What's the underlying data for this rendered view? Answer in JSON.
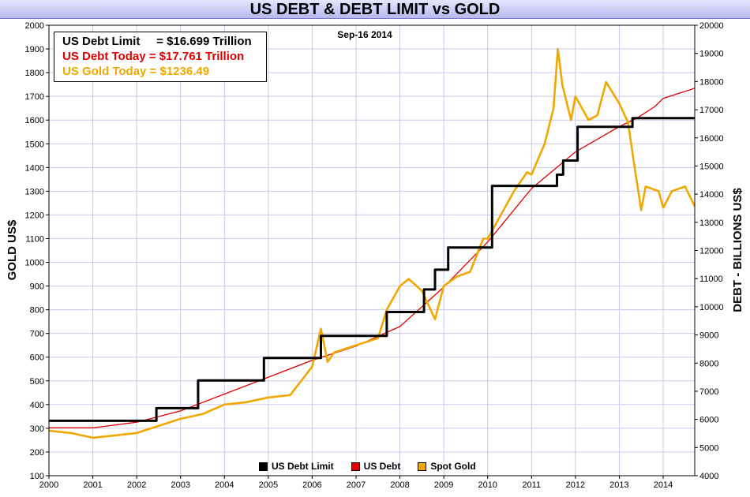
{
  "title": "US DEBT & DEBT LIMIT vs GOLD",
  "date_label": "Sep-16  2014",
  "info": {
    "lines": [
      {
        "text": "US Debt Limit     = $16.699 Trillion",
        "color": "#000000"
      },
      {
        "text": "US Debt Today = $17.761 Trillion",
        "color": "#e00000"
      },
      {
        "text": "US Gold Today = $1236.49",
        "color": "#f0a800"
      }
    ]
  },
  "legend": [
    {
      "label": "US Debt Limit",
      "color": "#000000"
    },
    {
      "label": "US Debt",
      "color": "#e00000"
    },
    {
      "label": "Spot Gold",
      "color": "#f0a800"
    }
  ],
  "chart_data": {
    "type": "line",
    "title": "US DEBT & DEBT LIMIT vs GOLD",
    "xlabel": "",
    "ylabel": "GOLD US$",
    "y2label": "DEBT - BILLIONS US$",
    "xlim": [
      2000,
      2014.72
    ],
    "ylim": [
      100,
      2000
    ],
    "y2lim": [
      4000,
      20000
    ],
    "x_ticks": [
      2000,
      2001,
      2002,
      2003,
      2004,
      2005,
      2006,
      2007,
      2008,
      2009,
      2010,
      2011,
      2012,
      2013,
      2014
    ],
    "y_ticks": [
      100,
      200,
      300,
      400,
      500,
      600,
      700,
      800,
      900,
      1000,
      1100,
      1200,
      1300,
      1400,
      1500,
      1600,
      1700,
      1800,
      1900,
      2000
    ],
    "y2_ticks": [
      4000,
      5000,
      6000,
      7000,
      8000,
      9000,
      10000,
      11000,
      12000,
      13000,
      14000,
      15000,
      16000,
      17000,
      18000,
      19000,
      20000
    ],
    "grid": true,
    "legend_position": "bottom-center",
    "series": [
      {
        "name": "US Debt Limit",
        "axis": "right",
        "color": "#000000",
        "style": "step",
        "x": [
          2000,
          2002.45,
          2002.45,
          2003.4,
          2003.4,
          2004.9,
          2004.9,
          2006.2,
          2006.2,
          2007.7,
          2007.7,
          2008.55,
          2008.55,
          2008.8,
          2008.8,
          2009.1,
          2009.1,
          2010.1,
          2010.1,
          2011.58,
          2011.58,
          2011.72,
          2011.72,
          2012.05,
          2012.05,
          2013.3,
          2013.3,
          2014.72
        ],
        "y": [
          5950,
          5950,
          6400,
          6400,
          7384,
          7384,
          8184,
          8184,
          8965,
          8965,
          9815,
          9815,
          10615,
          10615,
          11315,
          11315,
          12104,
          12104,
          14294,
          14294,
          14694,
          14694,
          15194,
          15194,
          16394,
          16394,
          16699,
          16699
        ]
      },
      {
        "name": "US Debt",
        "axis": "right",
        "color": "#e00000",
        "style": "line",
        "x": [
          2000,
          2001,
          2002,
          2003,
          2004,
          2005,
          2006,
          2007,
          2008,
          2009,
          2010,
          2011,
          2012,
          2013,
          2013.4,
          2013.8,
          2014,
          2014.72
        ],
        "y": [
          5700,
          5700,
          5900,
          6300,
          6900,
          7500,
          8100,
          8600,
          9300,
          10700,
          12300,
          14200,
          15500,
          16400,
          16700,
          17100,
          17400,
          17761
        ]
      },
      {
        "name": "Spot Gold",
        "axis": "left",
        "color": "#f0a800",
        "style": "line",
        "x": [
          2000,
          2000.5,
          2001,
          2001.5,
          2002,
          2002.5,
          2003,
          2003.5,
          2004,
          2004.5,
          2005,
          2005.5,
          2006,
          2006.2,
          2006.35,
          2006.5,
          2007,
          2007.5,
          2007.7,
          2008,
          2008.2,
          2008.5,
          2008.8,
          2009,
          2009.3,
          2009.6,
          2009.9,
          2010,
          2010.3,
          2010.6,
          2010.9,
          2011,
          2011.3,
          2011.5,
          2011.6,
          2011.7,
          2011.9,
          2012,
          2012.3,
          2012.5,
          2012.7,
          2012.9,
          2013,
          2013.2,
          2013.35,
          2013.5,
          2013.6,
          2013.9,
          2014,
          2014.2,
          2014.5,
          2014.72
        ],
        "y": [
          290,
          280,
          260,
          270,
          280,
          310,
          340,
          360,
          400,
          410,
          430,
          440,
          560,
          720,
          580,
          620,
          650,
          680,
          800,
          900,
          930,
          880,
          760,
          900,
          940,
          960,
          1100,
          1100,
          1200,
          1300,
          1380,
          1370,
          1500,
          1650,
          1900,
          1750,
          1600,
          1700,
          1600,
          1620,
          1760,
          1700,
          1670,
          1590,
          1400,
          1220,
          1320,
          1300,
          1230,
          1300,
          1320,
          1236
        ]
      }
    ]
  }
}
